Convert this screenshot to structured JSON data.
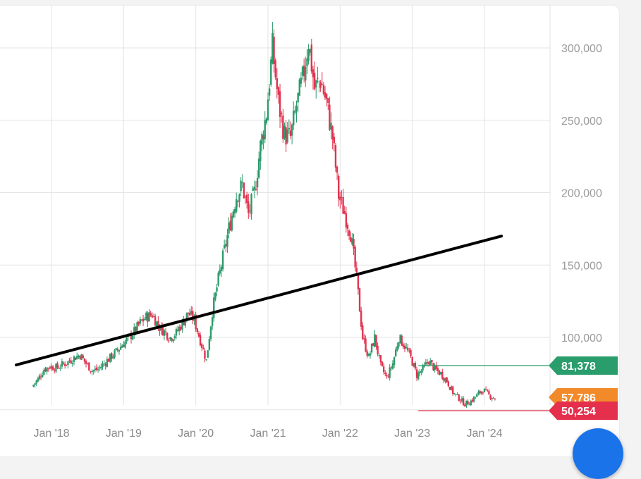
{
  "colors": {
    "up": "#2e9a6b",
    "down": "#e0344f",
    "grid": "#e3e3e3",
    "trendline": "#000000",
    "tag_green": "#2a9d6c",
    "tag_orange": "#f28a2a",
    "tag_red": "#e5304d",
    "fab": "#1a73e8"
  },
  "chart_data": {
    "type": "candlestick",
    "title": "",
    "xlabel": "",
    "ylabel": "",
    "ylim": [
      50000,
      316000
    ],
    "y_ticks": [
      "100,000",
      "150,000",
      "200,000",
      "250,000",
      "300,000"
    ],
    "y_tick_values": [
      100000,
      150000,
      200000,
      250000,
      300000
    ],
    "x_ticks": [
      "Jan '18",
      "Jan '19",
      "Jan '20",
      "Jan '21",
      "Jan '22",
      "Jan '23",
      "Jan '24"
    ],
    "x_tick_values": [
      "2018-01",
      "2019-01",
      "2020-01",
      "2021-01",
      "2022-01",
      "2023-01",
      "2024-01"
    ],
    "x_range": [
      "2017-09",
      "2024-05"
    ],
    "grid": true,
    "series": [
      {
        "points": [
          [
            "2017-10",
            66000
          ],
          [
            "2017-11",
            71000
          ],
          [
            "2017-12",
            78000
          ],
          [
            "2018-01",
            80000
          ],
          [
            "2018-02",
            79000
          ],
          [
            "2018-03",
            81000
          ],
          [
            "2018-04",
            83000
          ],
          [
            "2018-05",
            86000
          ],
          [
            "2018-06",
            88000
          ],
          [
            "2018-07",
            82000
          ],
          [
            "2018-08",
            77000
          ],
          [
            "2018-09",
            78000
          ],
          [
            "2018-10",
            82000
          ],
          [
            "2018-11",
            86000
          ],
          [
            "2018-12",
            90000
          ],
          [
            "2019-01",
            95000
          ],
          [
            "2019-02",
            99000
          ],
          [
            "2019-03",
            104000
          ],
          [
            "2019-04",
            110000
          ],
          [
            "2019-05",
            114000
          ],
          [
            "2019-06",
            116000
          ],
          [
            "2019-07",
            108000
          ],
          [
            "2019-08",
            104000
          ],
          [
            "2019-09",
            100000
          ],
          [
            "2019-10",
            103000
          ],
          [
            "2019-11",
            110000
          ],
          [
            "2019-12",
            117000
          ],
          [
            "2020-01",
            112000
          ],
          [
            "2020-02",
            98000
          ],
          [
            "2020-03",
            84000
          ],
          [
            "2020-04",
            118000
          ],
          [
            "2020-05",
            140000
          ],
          [
            "2020-06",
            160000
          ],
          [
            "2020-07",
            180000
          ],
          [
            "2020-08",
            198000
          ],
          [
            "2020-09",
            205000
          ],
          [
            "2020-10",
            185000
          ],
          [
            "2020-11",
            200000
          ],
          [
            "2020-12",
            232000
          ],
          [
            "2021-01",
            255000
          ],
          [
            "2021-02",
            300000
          ],
          [
            "2021-03",
            262000
          ],
          [
            "2021-04",
            240000
          ],
          [
            "2021-05",
            238000
          ],
          [
            "2021-06",
            260000
          ],
          [
            "2021-07",
            278000
          ],
          [
            "2021-08",
            305000
          ],
          [
            "2021-09",
            272000
          ],
          [
            "2021-10",
            278000
          ],
          [
            "2021-11",
            262000
          ],
          [
            "2021-12",
            238000
          ],
          [
            "2022-01",
            198000
          ],
          [
            "2022-02",
            186000
          ],
          [
            "2022-03",
            172000
          ],
          [
            "2022-04",
            140000
          ],
          [
            "2022-05",
            100000
          ],
          [
            "2022-06",
            86000
          ],
          [
            "2022-07",
            100000
          ],
          [
            "2022-08",
            80000
          ],
          [
            "2022-09",
            72000
          ],
          [
            "2022-10",
            82000
          ],
          [
            "2022-11",
            100000
          ],
          [
            "2022-12",
            94000
          ],
          [
            "2023-01",
            86000
          ],
          [
            "2023-02",
            74000
          ],
          [
            "2023-03",
            78000
          ],
          [
            "2023-04",
            84000
          ],
          [
            "2023-05",
            78000
          ],
          [
            "2023-06",
            75000
          ],
          [
            "2023-07",
            70000
          ],
          [
            "2023-08",
            62000
          ],
          [
            "2023-09",
            58000
          ],
          [
            "2023-10",
            54000
          ],
          [
            "2023-11",
            56000
          ],
          [
            "2023-12",
            60000
          ],
          [
            "2024-01",
            64000
          ],
          [
            "2024-02",
            60000
          ],
          [
            "2024-03",
            58000
          ]
        ]
      }
    ],
    "trendline": [
      [
        "2017-09",
        81000
      ],
      [
        "2024-03",
        170000
      ]
    ],
    "price_tags": [
      {
        "value": "81,378",
        "y": 81378,
        "color": "#2a9d6c",
        "line_from": "2023-02"
      },
      {
        "value": "57,786",
        "y": 57786,
        "color": "#f28a2a"
      },
      {
        "value": "50,254",
        "y": 50254,
        "color": "#e5304d",
        "line_from": "2023-02"
      }
    ]
  }
}
